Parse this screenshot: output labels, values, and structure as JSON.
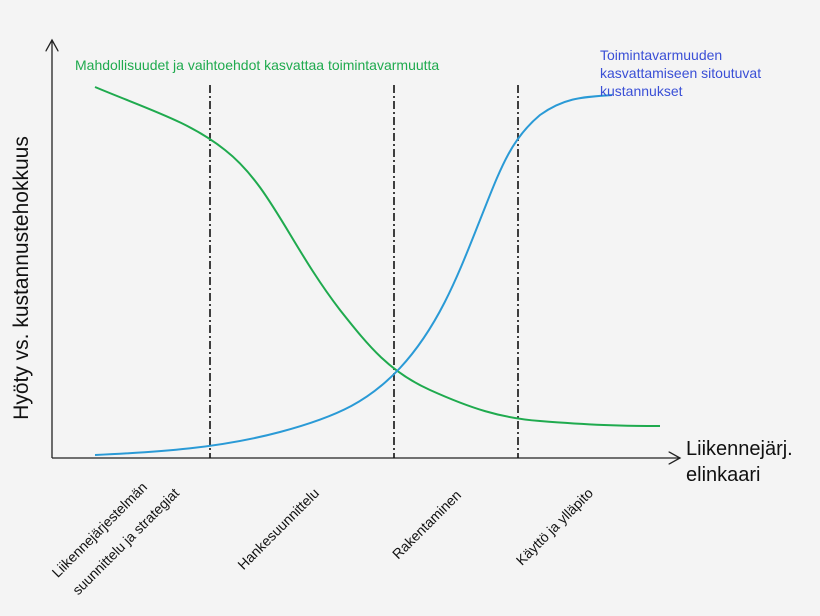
{
  "axes": {
    "y_label": "Hyöty vs. kustannustehokkuus",
    "x_label": [
      "Liikennejärj.",
      "elinkaari"
    ]
  },
  "curves": {
    "green_label": "Mahdollisuudet ja vaihtoehdot kasvattaa toimintavarmuutta",
    "blue_label": [
      "Toimintavarmuuden",
      "kasvattamiseen sitoutuvat",
      "kustannukset"
    ]
  },
  "phases": [
    [
      "Liikennejärjestelmän",
      "suunnittelu ja strategiat"
    ],
    [
      "Hankesuunnittelu"
    ],
    [
      "Rakentaminen"
    ],
    [
      "Käyttö ja ylläpito"
    ]
  ]
}
